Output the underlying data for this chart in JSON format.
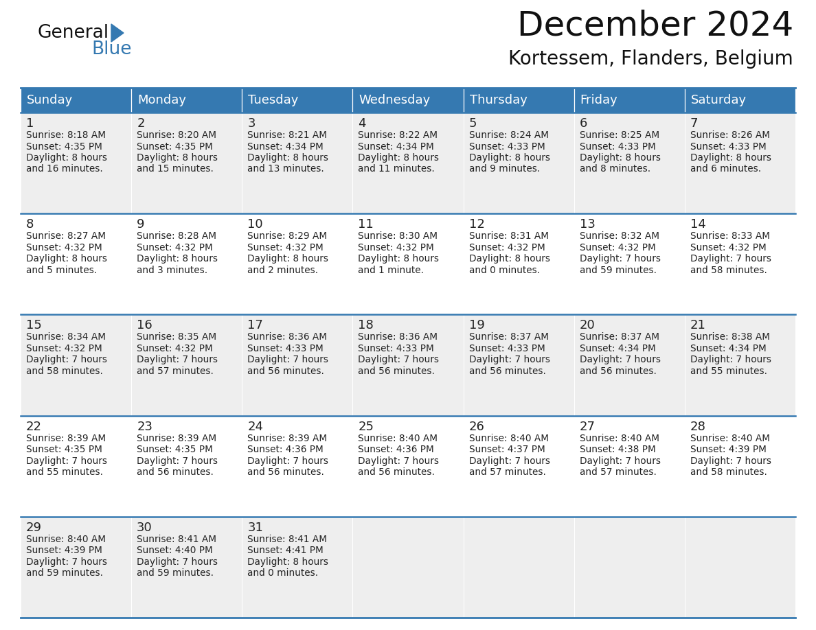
{
  "title": "December 2024",
  "subtitle": "Kortessem, Flanders, Belgium",
  "header_color": "#3579b1",
  "header_text_color": "#ffffff",
  "cell_bg_even": "#eeeeee",
  "cell_bg_odd": "#ffffff",
  "text_color": "#222222",
  "border_color": "#3579b1",
  "days_of_week": [
    "Sunday",
    "Monday",
    "Tuesday",
    "Wednesday",
    "Thursday",
    "Friday",
    "Saturday"
  ],
  "weeks": [
    [
      {
        "day": 1,
        "sunrise": "8:18 AM",
        "sunset": "4:35 PM",
        "daylight_h": "8 hours",
        "daylight_m": "and 16 minutes."
      },
      {
        "day": 2,
        "sunrise": "8:20 AM",
        "sunset": "4:35 PM",
        "daylight_h": "8 hours",
        "daylight_m": "and 15 minutes."
      },
      {
        "day": 3,
        "sunrise": "8:21 AM",
        "sunset": "4:34 PM",
        "daylight_h": "8 hours",
        "daylight_m": "and 13 minutes."
      },
      {
        "day": 4,
        "sunrise": "8:22 AM",
        "sunset": "4:34 PM",
        "daylight_h": "8 hours",
        "daylight_m": "and 11 minutes."
      },
      {
        "day": 5,
        "sunrise": "8:24 AM",
        "sunset": "4:33 PM",
        "daylight_h": "8 hours",
        "daylight_m": "and 9 minutes."
      },
      {
        "day": 6,
        "sunrise": "8:25 AM",
        "sunset": "4:33 PM",
        "daylight_h": "8 hours",
        "daylight_m": "and 8 minutes."
      },
      {
        "day": 7,
        "sunrise": "8:26 AM",
        "sunset": "4:33 PM",
        "daylight_h": "8 hours",
        "daylight_m": "and 6 minutes."
      }
    ],
    [
      {
        "day": 8,
        "sunrise": "8:27 AM",
        "sunset": "4:32 PM",
        "daylight_h": "8 hours",
        "daylight_m": "and 5 minutes."
      },
      {
        "day": 9,
        "sunrise": "8:28 AM",
        "sunset": "4:32 PM",
        "daylight_h": "8 hours",
        "daylight_m": "and 3 minutes."
      },
      {
        "day": 10,
        "sunrise": "8:29 AM",
        "sunset": "4:32 PM",
        "daylight_h": "8 hours",
        "daylight_m": "and 2 minutes."
      },
      {
        "day": 11,
        "sunrise": "8:30 AM",
        "sunset": "4:32 PM",
        "daylight_h": "8 hours",
        "daylight_m": "and 1 minute."
      },
      {
        "day": 12,
        "sunrise": "8:31 AM",
        "sunset": "4:32 PM",
        "daylight_h": "8 hours",
        "daylight_m": "and 0 minutes."
      },
      {
        "day": 13,
        "sunrise": "8:32 AM",
        "sunset": "4:32 PM",
        "daylight_h": "7 hours",
        "daylight_m": "and 59 minutes."
      },
      {
        "day": 14,
        "sunrise": "8:33 AM",
        "sunset": "4:32 PM",
        "daylight_h": "7 hours",
        "daylight_m": "and 58 minutes."
      }
    ],
    [
      {
        "day": 15,
        "sunrise": "8:34 AM",
        "sunset": "4:32 PM",
        "daylight_h": "7 hours",
        "daylight_m": "and 58 minutes."
      },
      {
        "day": 16,
        "sunrise": "8:35 AM",
        "sunset": "4:32 PM",
        "daylight_h": "7 hours",
        "daylight_m": "and 57 minutes."
      },
      {
        "day": 17,
        "sunrise": "8:36 AM",
        "sunset": "4:33 PM",
        "daylight_h": "7 hours",
        "daylight_m": "and 56 minutes."
      },
      {
        "day": 18,
        "sunrise": "8:36 AM",
        "sunset": "4:33 PM",
        "daylight_h": "7 hours",
        "daylight_m": "and 56 minutes."
      },
      {
        "day": 19,
        "sunrise": "8:37 AM",
        "sunset": "4:33 PM",
        "daylight_h": "7 hours",
        "daylight_m": "and 56 minutes."
      },
      {
        "day": 20,
        "sunrise": "8:37 AM",
        "sunset": "4:34 PM",
        "daylight_h": "7 hours",
        "daylight_m": "and 56 minutes."
      },
      {
        "day": 21,
        "sunrise": "8:38 AM",
        "sunset": "4:34 PM",
        "daylight_h": "7 hours",
        "daylight_m": "and 55 minutes."
      }
    ],
    [
      {
        "day": 22,
        "sunrise": "8:39 AM",
        "sunset": "4:35 PM",
        "daylight_h": "7 hours",
        "daylight_m": "and 55 minutes."
      },
      {
        "day": 23,
        "sunrise": "8:39 AM",
        "sunset": "4:35 PM",
        "daylight_h": "7 hours",
        "daylight_m": "and 56 minutes."
      },
      {
        "day": 24,
        "sunrise": "8:39 AM",
        "sunset": "4:36 PM",
        "daylight_h": "7 hours",
        "daylight_m": "and 56 minutes."
      },
      {
        "day": 25,
        "sunrise": "8:40 AM",
        "sunset": "4:36 PM",
        "daylight_h": "7 hours",
        "daylight_m": "and 56 minutes."
      },
      {
        "day": 26,
        "sunrise": "8:40 AM",
        "sunset": "4:37 PM",
        "daylight_h": "7 hours",
        "daylight_m": "and 57 minutes."
      },
      {
        "day": 27,
        "sunrise": "8:40 AM",
        "sunset": "4:38 PM",
        "daylight_h": "7 hours",
        "daylight_m": "and 57 minutes."
      },
      {
        "day": 28,
        "sunrise": "8:40 AM",
        "sunset": "4:39 PM",
        "daylight_h": "7 hours",
        "daylight_m": "and 58 minutes."
      }
    ],
    [
      {
        "day": 29,
        "sunrise": "8:40 AM",
        "sunset": "4:39 PM",
        "daylight_h": "7 hours",
        "daylight_m": "and 59 minutes."
      },
      {
        "day": 30,
        "sunrise": "8:41 AM",
        "sunset": "4:40 PM",
        "daylight_h": "7 hours",
        "daylight_m": "and 59 minutes."
      },
      {
        "day": 31,
        "sunrise": "8:41 AM",
        "sunset": "4:41 PM",
        "daylight_h": "8 hours",
        "daylight_m": "and 0 minutes."
      },
      null,
      null,
      null,
      null
    ]
  ]
}
